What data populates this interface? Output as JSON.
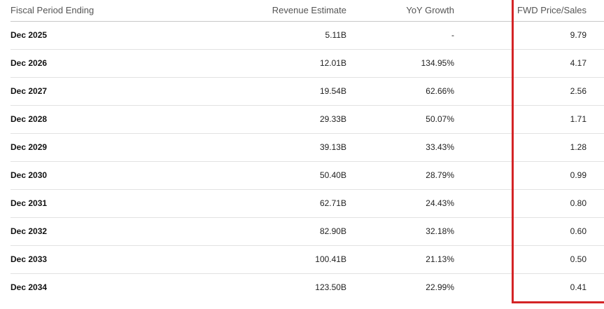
{
  "table": {
    "columns": {
      "period": "Fiscal Period Ending",
      "revenue": "Revenue Estimate",
      "yoy": "YoY Growth",
      "price_sales": "FWD Price/Sales"
    },
    "rows": [
      {
        "period": "Dec 2025",
        "revenue": "5.11B",
        "yoy": "-",
        "price_sales": "9.79"
      },
      {
        "period": "Dec 2026",
        "revenue": "12.01B",
        "yoy": "134.95%",
        "price_sales": "4.17"
      },
      {
        "period": "Dec 2027",
        "revenue": "19.54B",
        "yoy": "62.66%",
        "price_sales": "2.56"
      },
      {
        "period": "Dec 2028",
        "revenue": "29.33B",
        "yoy": "50.07%",
        "price_sales": "1.71"
      },
      {
        "period": "Dec 2029",
        "revenue": "39.13B",
        "yoy": "33.43%",
        "price_sales": "1.28"
      },
      {
        "period": "Dec 2030",
        "revenue": "50.40B",
        "yoy": "28.79%",
        "price_sales": "0.99"
      },
      {
        "period": "Dec 2031",
        "revenue": "62.71B",
        "yoy": "24.43%",
        "price_sales": "0.80"
      },
      {
        "period": "Dec 2032",
        "revenue": "82.90B",
        "yoy": "32.18%",
        "price_sales": "0.60"
      },
      {
        "period": "Dec 2033",
        "revenue": "100.41B",
        "yoy": "21.13%",
        "price_sales": "0.50"
      },
      {
        "period": "Dec 2034",
        "revenue": "123.50B",
        "yoy": "22.99%",
        "price_sales": "0.41"
      }
    ]
  },
  "highlight": {
    "color": "#d42426"
  }
}
